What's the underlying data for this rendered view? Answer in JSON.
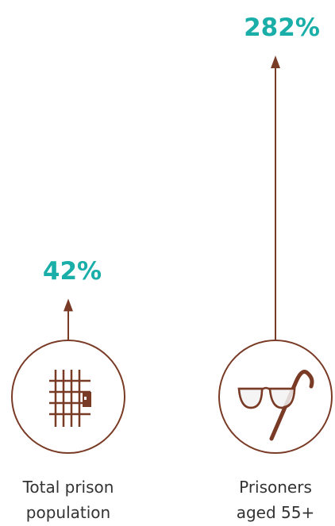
{
  "chart_data": {
    "type": "bar",
    "categories": [
      "Total prison population",
      "Prisoners aged 55+"
    ],
    "values": [
      42,
      282
    ],
    "data_labels": [
      "42%",
      "282%"
    ],
    "category_lines": [
      [
        "Total prison",
        "population"
      ],
      [
        "Prisoners",
        "aged 55+"
      ]
    ],
    "icons": [
      "prison-bars-icon",
      "glasses-and-cane-icon"
    ],
    "title": "",
    "xlabel": "",
    "ylabel": "",
    "grid": false,
    "legend": "none"
  },
  "colors": {
    "arrow": "#7a3b26",
    "label": "#1aaea8",
    "text": "#333333",
    "icon": "#7a3b26"
  }
}
